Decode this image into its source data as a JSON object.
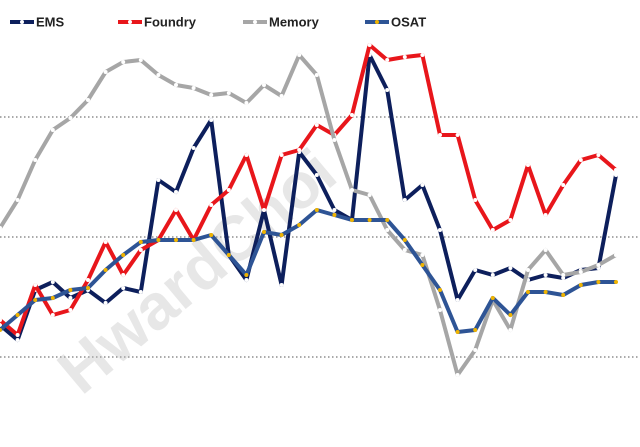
{
  "chart_data": {
    "type": "line",
    "categories": [
      null,
      null,
      null,
      null,
      null,
      null,
      null,
      null,
      null,
      null,
      null,
      null,
      null,
      null,
      null,
      null,
      null,
      null,
      null,
      null,
      null,
      null,
      null,
      null,
      null,
      null,
      null,
      null,
      null,
      null,
      null,
      null,
      null,
      null,
      null,
      null
    ],
    "ylim": [
      0,
      447
    ],
    "gridlines": [
      90,
      210,
      330
    ],
    "legend": "top",
    "watermark": "HwardChoi",
    "series": [
      {
        "name": "EMS",
        "color": "#0d1f5c",
        "marker_color": "#ffffff",
        "values": [
          122,
          107,
          157,
          165,
          149,
          157,
          144,
          159,
          155,
          267,
          255,
          299,
          327,
          192,
          167,
          237,
          162,
          295,
          272,
          237,
          227,
          392,
          357,
          247,
          262,
          217,
          147,
          177,
          172,
          179,
          167,
          172,
          169,
          177,
          179,
          272
        ]
      },
      {
        "name": "Foundry",
        "color": "#e8161b",
        "marker_color": "#ffffff",
        "values": [
          127,
          112,
          162,
          132,
          137,
          167,
          205,
          172,
          197,
          207,
          237,
          207,
          242,
          257,
          292,
          237,
          292,
          297,
          322,
          312,
          332,
          402,
          387,
          390,
          392,
          312,
          312,
          247,
          217,
          227,
          282,
          232,
          262,
          287,
          292,
          277
        ]
      },
      {
        "name": "Memory",
        "color": "#a6a6a6",
        "marker_color": "#ffffff",
        "values": [
          219,
          247,
          287,
          317,
          329,
          347,
          375,
          385,
          387,
          372,
          362,
          359,
          352,
          354,
          344,
          362,
          351,
          392,
          372,
          307,
          257,
          252,
          217,
          197,
          192,
          137,
          72,
          97,
          147,
          117,
          177,
          197,
          172,
          175,
          182,
          192
        ]
      },
      {
        "name": "OSAT",
        "color": "#2e5495",
        "marker_color": "#f0b400",
        "values": [
          117,
          132,
          147,
          149,
          157,
          159,
          177,
          192,
          205,
          207,
          207,
          207,
          212,
          192,
          172,
          215,
          212,
          222,
          237,
          232,
          227,
          227,
          227,
          207,
          182,
          157,
          115,
          117,
          149,
          132,
          155,
          155,
          152,
          162,
          165,
          165
        ]
      }
    ]
  }
}
